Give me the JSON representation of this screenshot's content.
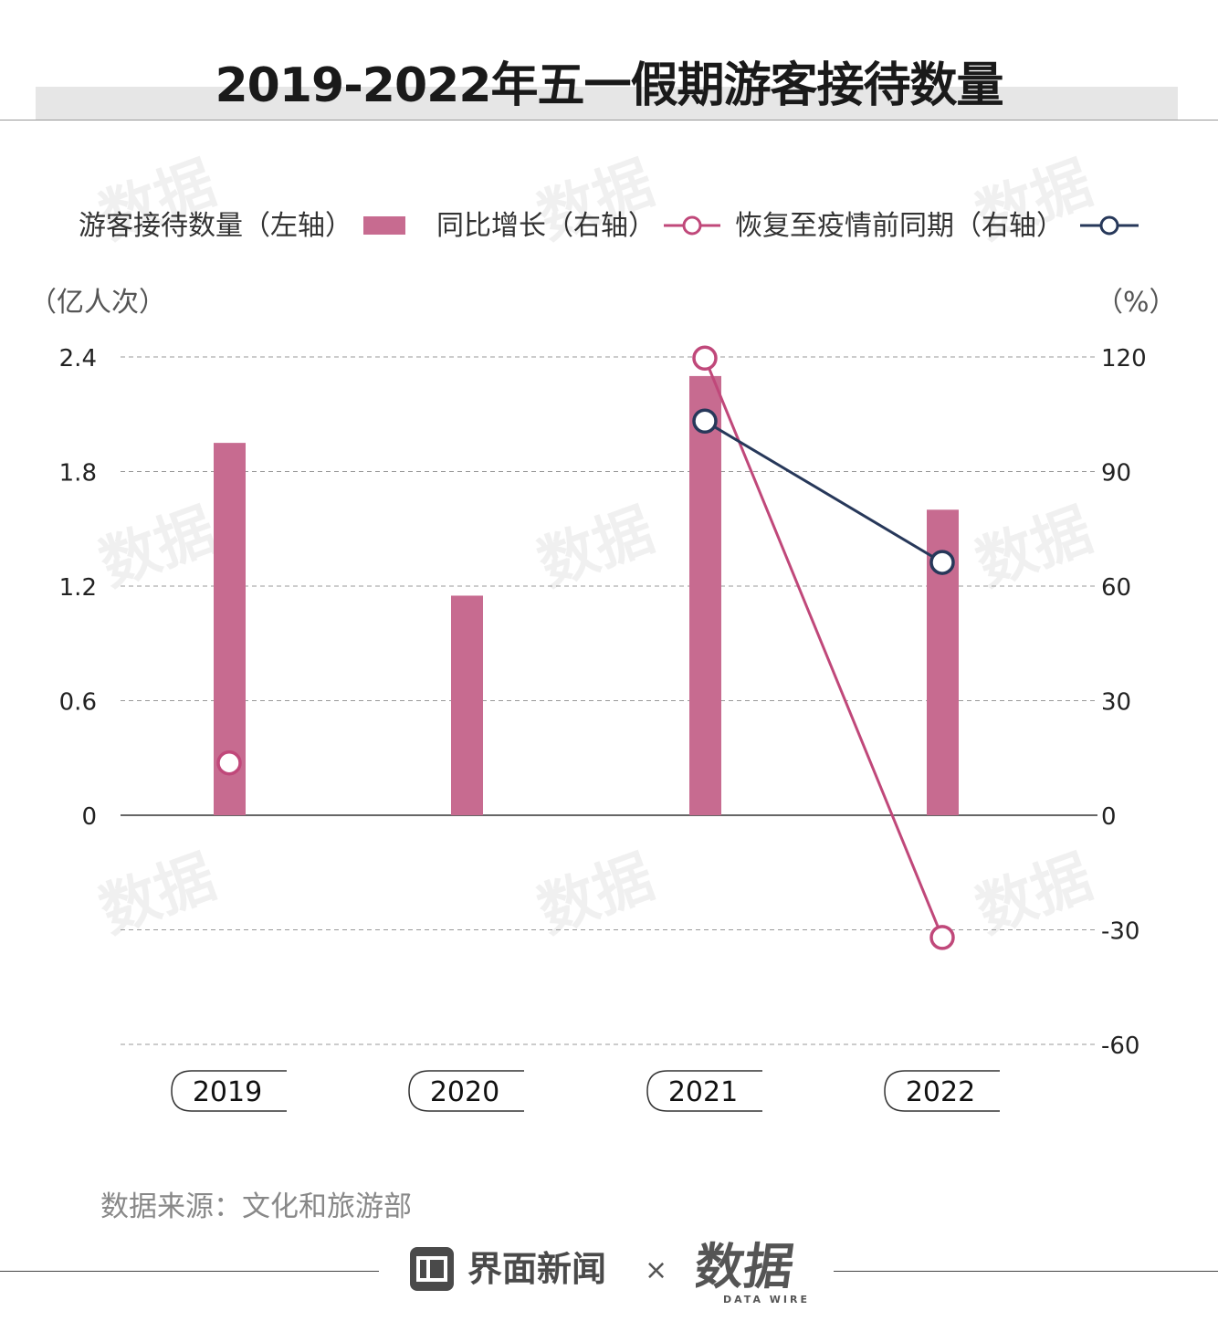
{
  "title": "2019-2022年五一假期游客接待数量",
  "legend": {
    "bars_label": "游客接待数量（左轴）",
    "yoy_label": "同比增长（右轴）",
    "recovery_label": "恢复至疫情前同期（右轴）"
  },
  "left_axis_unit": "（亿人次）",
  "right_axis_unit": "（%）",
  "source": "数据来源：文化和旅游部",
  "footer": {
    "brand": "界面新闻",
    "separator": "×",
    "logo_text": "数据",
    "logo_sub": "DATA WIRE"
  },
  "watermark_text": "数据",
  "colors": {
    "bar": "#c76b90",
    "yoy": "#c0487a",
    "recovery": "#27385a",
    "grid": "#999999"
  },
  "chart_data": {
    "type": "bar",
    "categories": [
      "2019",
      "2020",
      "2021",
      "2022"
    ],
    "series": [
      {
        "name": "游客接待数量（左轴）",
        "type": "bar",
        "axis": "left",
        "values": [
          1.95,
          1.15,
          2.3,
          1.6
        ]
      },
      {
        "name": "同比增长（右轴）",
        "type": "line",
        "axis": "right",
        "values": [
          13.7,
          null,
          119.7,
          -32.0
        ]
      },
      {
        "name": "恢复至疫情前同期（右轴）",
        "type": "line",
        "axis": "right",
        "values": [
          null,
          null,
          103.2,
          66.2
        ]
      }
    ],
    "left_axis": {
      "ylim": [
        0,
        2.4
      ],
      "ticks": [
        "2.4",
        "1.8",
        "1.2",
        "0.6",
        "0"
      ]
    },
    "right_axis": {
      "ylim": [
        -60,
        120
      ],
      "ticks": [
        "120",
        "90",
        "60",
        "30",
        "0",
        "-30",
        "-60"
      ]
    },
    "grid": true,
    "legend_position": "top"
  }
}
